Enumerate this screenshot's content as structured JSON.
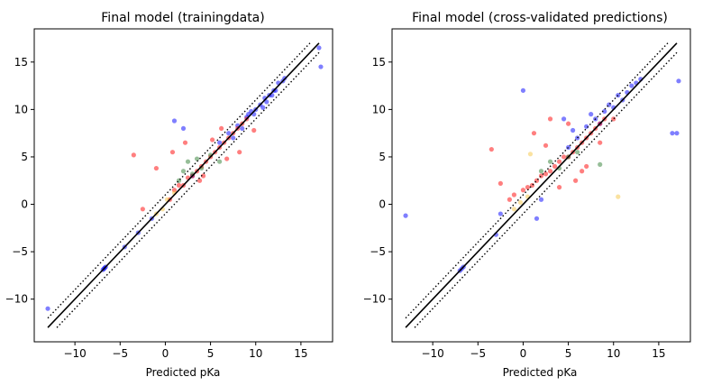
{
  "chart_data": [
    {
      "type": "scatter",
      "title": "Final model (trainingdata)",
      "xlabel": "Predicted pKa",
      "ylabel": "",
      "xlim": [
        -14.5,
        18.5
      ],
      "ylim": [
        -14.5,
        18.5
      ],
      "xticks": [
        -10,
        -5,
        0,
        5,
        10,
        15
      ],
      "yticks": [
        -10,
        -5,
        0,
        5,
        10,
        15
      ],
      "xtick_labels": [
        "−10",
        "−5",
        "0",
        "5",
        "10",
        "15"
      ],
      "ytick_labels": [
        "−10",
        "−5",
        "0",
        "5",
        "10",
        "15"
      ],
      "grid": false,
      "lines": [
        {
          "style": "solid",
          "color": "#000000",
          "x": [
            -13,
            17
          ],
          "y": [
            -13,
            17
          ]
        },
        {
          "style": "dotted",
          "color": "#000000",
          "x": [
            -13,
            16
          ],
          "y": [
            -12,
            17
          ]
        },
        {
          "style": "dotted",
          "color": "#000000",
          "x": [
            -12,
            17
          ],
          "y": [
            -13,
            16
          ]
        }
      ],
      "series": [
        {
          "color": "#0000ff",
          "x": [
            -6.8,
            -6.7,
            -6.6,
            -6.9,
            -3.0,
            -1.5,
            3.0,
            6.0,
            7.0,
            8.0,
            9.0,
            9.5,
            10.0,
            10.5,
            11.0,
            11.5,
            12.0,
            12.5,
            13.0,
            13.2,
            17.0,
            17.2,
            -13.0,
            1.0,
            2.0,
            -4.5,
            7.5,
            8.5,
            9.8,
            10.8,
            11.8,
            12.2,
            11.2,
            9.2
          ],
          "y": [
            -6.8,
            -6.7,
            -6.6,
            -6.9,
            -3.0,
            -1.5,
            3.0,
            6.5,
            7.5,
            8.3,
            9.2,
            9.8,
            10.0,
            10.5,
            11.2,
            11.5,
            12.0,
            12.8,
            13.0,
            13.3,
            16.5,
            14.5,
            -11.0,
            8.8,
            8.0,
            -4.5,
            7.0,
            8.0,
            9.5,
            10.2,
            11.5,
            12.0,
            10.8,
            9.5
          ]
        },
        {
          "color": "#ff0000",
          "x": [
            -3.5,
            -2.5,
            -1.0,
            0.5,
            1.0,
            1.5,
            2.0,
            2.5,
            3.0,
            3.5,
            4.0,
            4.5,
            5.0,
            5.5,
            6.0,
            6.5,
            7.0,
            7.5,
            8.0,
            8.5,
            9.0,
            3.8,
            5.2,
            6.8,
            0.8,
            2.2,
            4.2,
            6.2,
            8.2,
            9.8
          ],
          "y": [
            5.2,
            -0.5,
            3.8,
            0.5,
            1.5,
            2.0,
            2.0,
            2.8,
            3.0,
            3.5,
            4.0,
            4.5,
            5.0,
            5.5,
            6.0,
            6.5,
            7.0,
            7.5,
            8.0,
            8.5,
            9.0,
            2.5,
            6.8,
            4.8,
            5.5,
            6.5,
            3.0,
            8.0,
            5.5,
            7.8
          ]
        },
        {
          "color": "#2e7d32",
          "x": [
            1.5,
            2.0,
            2.5,
            3.0,
            3.5,
            4.0,
            5.0,
            6.0
          ],
          "y": [
            2.5,
            3.5,
            4.5,
            3.2,
            4.8,
            3.8,
            5.2,
            4.5
          ]
        },
        {
          "color": "#f5c542",
          "x": [
            -1.0,
            0.2,
            -0.3,
            1.0
          ],
          "y": [
            -1.0,
            0.5,
            -0.5,
            1.2
          ]
        }
      ]
    },
    {
      "type": "scatter",
      "title": "Final model (cross-validated predictions)",
      "xlabel": "Predicted pKa",
      "ylabel": "",
      "xlim": [
        -14.5,
        18.5
      ],
      "ylim": [
        -14.5,
        18.5
      ],
      "xticks": [
        -10,
        -5,
        0,
        5,
        10,
        15
      ],
      "yticks": [
        -10,
        -5,
        0,
        5,
        10,
        15
      ],
      "xtick_labels": [
        "−10",
        "−5",
        "0",
        "5",
        "10",
        "15"
      ],
      "ytick_labels": [
        "−10",
        "−5",
        "0",
        "5",
        "10",
        "15"
      ],
      "grid": false,
      "lines": [
        {
          "style": "solid",
          "color": "#000000",
          "x": [
            -13,
            17
          ],
          "y": [
            -13,
            17
          ]
        },
        {
          "style": "dotted",
          "color": "#000000",
          "x": [
            -13,
            16
          ],
          "y": [
            -12,
            17
          ]
        },
        {
          "style": "dotted",
          "color": "#000000",
          "x": [
            -12,
            17
          ],
          "y": [
            -13,
            16
          ]
        }
      ],
      "series": [
        {
          "color": "#0000ff",
          "x": [
            -6.8,
            -6.6,
            -7.0,
            -13.0,
            -3.0,
            -2.5,
            0.0,
            1.5,
            2.0,
            5.0,
            6.0,
            7.0,
            8.0,
            9.0,
            10.0,
            11.0,
            11.5,
            12.0,
            12.5,
            13.0,
            16.5,
            17.0,
            17.2,
            7.5,
            8.5,
            9.5,
            10.5,
            4.5,
            5.5
          ],
          "y": [
            -6.8,
            -6.6,
            -7.0,
            -1.2,
            -3.2,
            -1.0,
            12.0,
            -1.5,
            0.5,
            6.0,
            7.0,
            8.2,
            9.0,
            9.8,
            10.2,
            11.0,
            11.8,
            12.5,
            12.8,
            13.2,
            7.5,
            7.5,
            13.0,
            9.5,
            8.5,
            10.5,
            11.5,
            9.0,
            7.8
          ]
        },
        {
          "color": "#ff0000",
          "x": [
            -3.5,
            -2.5,
            -1.5,
            -1.0,
            0.0,
            0.5,
            1.0,
            1.5,
            2.0,
            2.5,
            3.0,
            3.5,
            4.0,
            4.5,
            5.0,
            5.5,
            6.0,
            6.5,
            7.0,
            7.5,
            8.0,
            8.5,
            9.0,
            3.0,
            5.0,
            7.0,
            1.2,
            4.0,
            6.5,
            8.5,
            10.0,
            2.5,
            5.8
          ],
          "y": [
            5.8,
            2.2,
            0.5,
            1.0,
            1.5,
            1.8,
            2.0,
            2.5,
            3.0,
            3.2,
            3.5,
            4.0,
            4.5,
            5.0,
            5.0,
            5.5,
            6.0,
            6.5,
            7.0,
            7.5,
            8.0,
            8.5,
            9.0,
            9.0,
            8.5,
            4.0,
            7.5,
            1.8,
            3.5,
            6.5,
            9.0,
            6.2,
            2.5
          ]
        },
        {
          "color": "#2e7d32",
          "x": [
            2.0,
            3.0,
            4.0,
            5.0,
            6.0,
            8.5
          ],
          "y": [
            3.5,
            4.5,
            3.8,
            5.0,
            5.5,
            4.2
          ]
        },
        {
          "color": "#f5c542",
          "x": [
            -1.0,
            -0.3,
            0.5,
            10.5,
            0.8
          ],
          "y": [
            -0.5,
            0.2,
            0.8,
            0.8,
            5.3
          ]
        }
      ]
    }
  ]
}
